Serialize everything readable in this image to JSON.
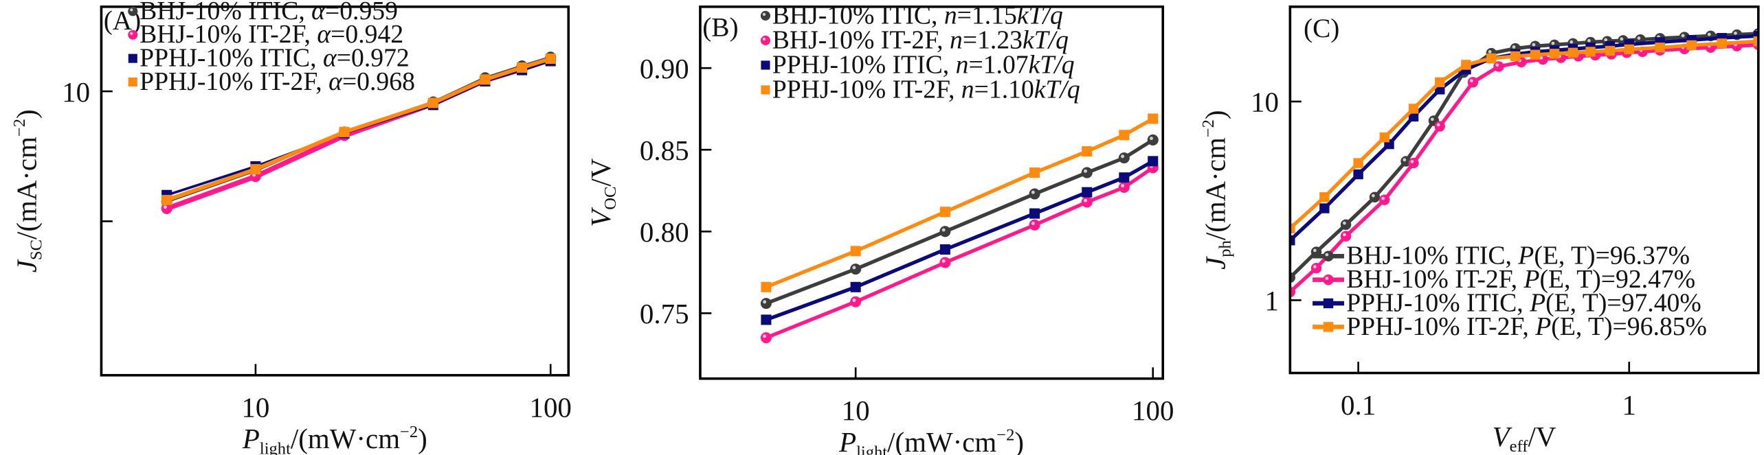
{
  "colors": {
    "BHJ-10% ITIC": "#3d3d3d",
    "BHJ-10% IT-2F": "#ff1a8c",
    "PPHJ-10% ITIC": "#0a0a7a",
    "PPHJ-10% IT-2F": "#ff8a10"
  },
  "chart_data": [
    {
      "id": "A",
      "type": "line",
      "panel_label": "(A)",
      "title": "",
      "xlabel": "P_light/(mW·cm^-2)",
      "xlabel_parts": {
        "main": "P",
        "sub": "light",
        "rest": "/(mW·cm",
        "sup": "−2",
        "end": ")"
      },
      "ylabel": "J_SC/(mA·cm^-2)",
      "ylabel_parts": {
        "main": "J",
        "sub": "SC",
        "rest": "/(mA·cm",
        "sup": "−2",
        "end": ")"
      },
      "xscale": "log",
      "yscale": "log",
      "xlim": [
        3.0,
        115
      ],
      "ylim": [
        2.2,
        15.7
      ],
      "xticks": [
        10,
        100
      ],
      "xtick_labels": [
        "10",
        "100"
      ],
      "yticks": [
        5,
        10
      ],
      "ytick_labels": [
        "",
        "10"
      ],
      "grid": false,
      "legend_position": "top-left",
      "x": [
        5,
        10,
        20,
        40,
        60,
        80,
        100
      ],
      "series": [
        {
          "name": "BHJ-10% ITIC",
          "param": "α=0.959",
          "param_sym": "α",
          "param_val": "=0.959",
          "marker": "circle",
          "values": [
            5.55,
            6.55,
            8.05,
            9.45,
            10.75,
            11.45,
            12.0
          ]
        },
        {
          "name": "BHJ-10% IT-2F",
          "param": "α=0.942",
          "param_sym": "α",
          "param_val": "=0.942",
          "marker": "circle",
          "values": [
            5.35,
            6.35,
            7.9,
            9.35,
            10.6,
            11.25,
            11.85
          ]
        },
        {
          "name": "PPHJ-10% ITIC",
          "param": "α=0.972",
          "param_sym": "α",
          "param_val": "=0.972",
          "marker": "square",
          "values": [
            5.75,
            6.7,
            8.0,
            9.3,
            10.55,
            11.2,
            11.75
          ]
        },
        {
          "name": "PPHJ-10% IT-2F",
          "param": "α=0.968",
          "param_sym": "α",
          "param_val": "=0.968",
          "marker": "square",
          "values": [
            5.6,
            6.6,
            8.05,
            9.4,
            10.65,
            11.35,
            11.9
          ]
        }
      ]
    },
    {
      "id": "B",
      "type": "line",
      "panel_label": "(B)",
      "title": "",
      "xlabel": "P_light/(mW·cm^-2)",
      "xlabel_parts": {
        "main": "P",
        "sub": "light",
        "rest": "/(mW·cm",
        "sup": "−2",
        "end": ")"
      },
      "ylabel": "V_OC/V",
      "ylabel_parts": {
        "main": "V",
        "sub": "OC",
        "rest": "/V",
        "sup": "",
        "end": ""
      },
      "xscale": "log",
      "yscale": "linear",
      "xlim": [
        3.0,
        108
      ],
      "ylim": [
        0.71,
        0.9375
      ],
      "xticks": [
        10,
        100
      ],
      "xtick_labels": [
        "10",
        "100"
      ],
      "yticks": [
        0.75,
        0.8,
        0.85,
        0.9
      ],
      "ytick_labels": [
        "0.75",
        "0.80",
        "0.85",
        "0.90"
      ],
      "grid": false,
      "legend_position": "top-left",
      "x": [
        5,
        10,
        20,
        40,
        60,
        80,
        100
      ],
      "series": [
        {
          "name": "BHJ-10% ITIC",
          "param": "n=1.15kT/q",
          "param_sym": "n",
          "param_val": "=1.15",
          "param_tail": "kT/q",
          "marker": "circle",
          "values": [
            0.756,
            0.777,
            0.8,
            0.823,
            0.836,
            0.845,
            0.856
          ]
        },
        {
          "name": "BHJ-10% IT-2F",
          "param": "n=1.23kT/q",
          "param_sym": "n",
          "param_val": "=1.23",
          "param_tail": "kT/q",
          "marker": "circle",
          "values": [
            0.735,
            0.757,
            0.781,
            0.804,
            0.818,
            0.827,
            0.839
          ]
        },
        {
          "name": "PPHJ-10% ITIC",
          "param": "n=1.07kT/q",
          "param_sym": "n",
          "param_val": "=1.07",
          "param_tail": "kT/q",
          "marker": "square",
          "values": [
            0.746,
            0.766,
            0.789,
            0.811,
            0.824,
            0.833,
            0.843
          ]
        },
        {
          "name": "PPHJ-10% IT-2F",
          "param": "n=1.10kT/q",
          "param_sym": "n",
          "param_val": "=1.10",
          "param_tail": "kT/q",
          "marker": "square",
          "values": [
            0.766,
            0.788,
            0.812,
            0.836,
            0.849,
            0.859,
            0.869
          ]
        }
      ]
    },
    {
      "id": "C",
      "type": "line",
      "panel_label": "(C)",
      "title": "",
      "xlabel": "V_eff/V",
      "xlabel_parts": {
        "main": "V",
        "sub": "eff",
        "rest": "/V",
        "sup": "",
        "end": ""
      },
      "ylabel": "J_ph/(mA·cm^-2)",
      "ylabel_parts": {
        "main": "J",
        "sub": "ph",
        "rest": "/(mA·cm",
        "sup": "−2",
        "end": ")"
      },
      "xscale": "log",
      "yscale": "log",
      "xlim": [
        0.056,
        3.0
      ],
      "ylim": [
        0.43,
        30
      ],
      "xticks": [
        0.1,
        1
      ],
      "xtick_labels": [
        "0.1",
        "1"
      ],
      "yticks": [
        1,
        10
      ],
      "ytick_labels": [
        "1",
        "10"
      ],
      "grid": false,
      "legend_position": "bottom-right",
      "series": [
        {
          "name": "BHJ-10% ITIC",
          "param": "P(E, T)=96.37%",
          "param_sym": "P",
          "param_val": "(E, T)=96.37%",
          "marker": "circle",
          "x": [
            0.056,
            0.07,
            0.09,
            0.115,
            0.15,
            0.19,
            0.245,
            0.31,
            0.38,
            0.45,
            0.53,
            0.62,
            0.72,
            0.83,
            0.95,
            1.1,
            1.3,
            1.6,
            2.0,
            2.5,
            3.0
          ],
          "values": [
            1.3,
            1.75,
            2.4,
            3.3,
            5.0,
            8.0,
            14.0,
            17.5,
            18.5,
            19.0,
            19.3,
            19.6,
            19.9,
            20.1,
            20.3,
            20.5,
            20.8,
            21.1,
            21.4,
            21.7,
            22.0
          ]
        },
        {
          "name": "BHJ-10% IT-2F",
          "param": "P(E, T)=92.47%",
          "param_sym": "P",
          "param_val": "(E, T)=92.47%",
          "marker": "circle",
          "x": [
            0.056,
            0.07,
            0.09,
            0.125,
            0.16,
            0.2,
            0.265,
            0.33,
            0.4,
            0.48,
            0.56,
            0.65,
            0.75,
            0.86,
            0.98,
            1.12,
            1.3,
            1.6,
            2.0,
            2.5,
            3.0
          ],
          "values": [
            1.1,
            1.45,
            2.1,
            3.2,
            4.9,
            7.5,
            12.5,
            15.0,
            15.8,
            16.3,
            16.6,
            16.9,
            17.1,
            17.3,
            17.6,
            17.8,
            18.1,
            18.4,
            18.7,
            19.0,
            19.3
          ]
        },
        {
          "name": "PPHJ-10% ITIC",
          "param": "P(E, T)=97.40%",
          "param_sym": "P",
          "param_val": "(E, T)=97.40%",
          "marker": "square",
          "x": [
            0.056,
            0.075,
            0.1,
            0.13,
            0.16,
            0.2,
            0.25,
            0.31,
            0.38,
            0.45,
            0.53,
            0.62,
            0.72,
            0.85,
            1.0,
            1.3,
            1.7,
            2.2,
            3.0
          ],
          "values": [
            2.0,
            2.9,
            4.3,
            6.1,
            8.4,
            11.5,
            14.5,
            16.5,
            17.3,
            17.8,
            18.1,
            18.4,
            18.7,
            19.0,
            19.4,
            19.9,
            20.4,
            20.9,
            21.4
          ]
        },
        {
          "name": "PPHJ-10% IT-2F",
          "param": "P(E, T)=96.85%",
          "param_sym": "P",
          "param_val": "(E, T)=96.85%",
          "marker": "square",
          "x": [
            0.056,
            0.075,
            0.1,
            0.125,
            0.16,
            0.2,
            0.25,
            0.31,
            0.38,
            0.45,
            0.53,
            0.62,
            0.72,
            0.85,
            1.0,
            1.3,
            1.7,
            2.2,
            3.0
          ],
          "values": [
            2.3,
            3.3,
            4.9,
            6.6,
            9.2,
            12.5,
            15.3,
            16.5,
            16.9,
            17.2,
            17.4,
            17.6,
            17.8,
            18.0,
            18.3,
            18.7,
            19.2,
            19.6,
            20.1
          ]
        }
      ]
    }
  ]
}
